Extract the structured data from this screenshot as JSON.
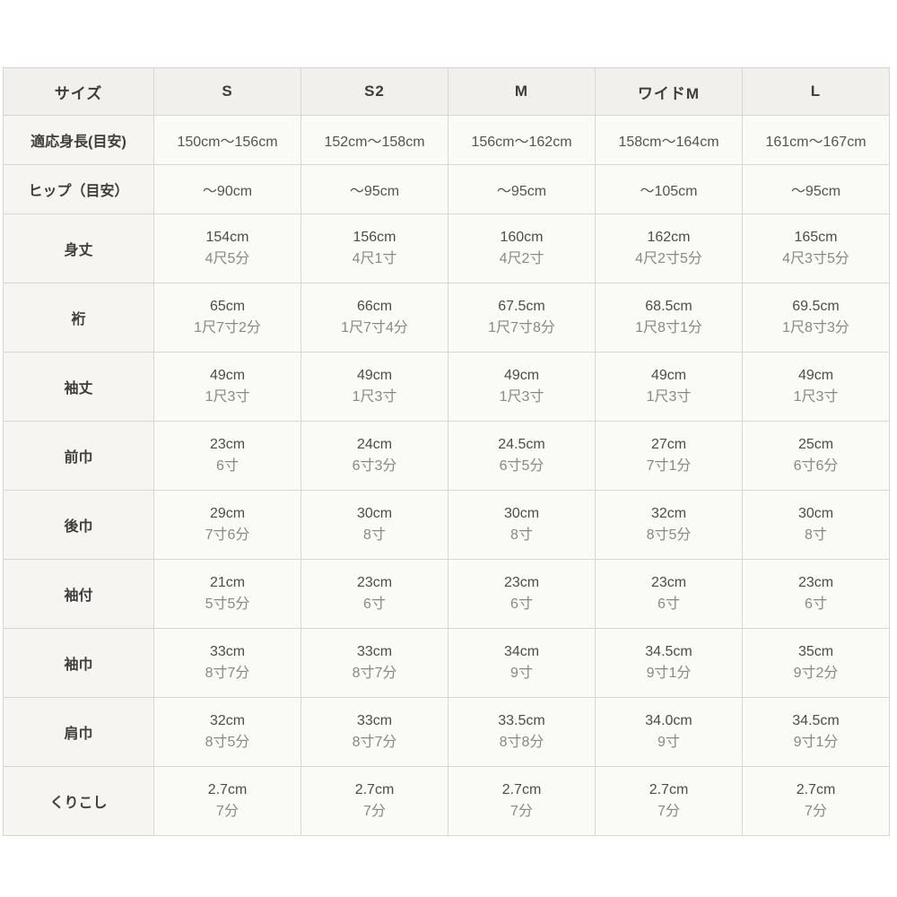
{
  "table": {
    "columns": [
      "サイズ",
      "S",
      "S2",
      "M",
      "ワイドM",
      "L"
    ],
    "rows": [
      {
        "label": "適応身長(目安)",
        "type": "single",
        "values": [
          "150cm〜156cm",
          "152cm〜158cm",
          "156cm〜162cm",
          "158cm〜164cm",
          "161cm〜167cm"
        ]
      },
      {
        "label": "ヒップ（目安）",
        "type": "single",
        "values": [
          "〜90cm",
          "〜95cm",
          "〜95cm",
          "〜105cm",
          "〜95cm"
        ]
      },
      {
        "label": "身丈",
        "type": "double",
        "values": [
          [
            "154cm",
            "4尺5分"
          ],
          [
            "156cm",
            "4尺1寸"
          ],
          [
            "160cm",
            "4尺2寸"
          ],
          [
            "162cm",
            "4尺2寸5分"
          ],
          [
            "165cm",
            "4尺3寸5分"
          ]
        ]
      },
      {
        "label": "裄",
        "type": "double",
        "values": [
          [
            "65cm",
            "1尺7寸2分"
          ],
          [
            "66cm",
            "1尺7寸4分"
          ],
          [
            "67.5cm",
            "1尺7寸8分"
          ],
          [
            "68.5cm",
            "1尺8寸1分"
          ],
          [
            "69.5cm",
            "1尺8寸3分"
          ]
        ]
      },
      {
        "label": "袖丈",
        "type": "double",
        "values": [
          [
            "49cm",
            "1尺3寸"
          ],
          [
            "49cm",
            "1尺3寸"
          ],
          [
            "49cm",
            "1尺3寸"
          ],
          [
            "49cm",
            "1尺3寸"
          ],
          [
            "49cm",
            "1尺3寸"
          ]
        ]
      },
      {
        "label": "前巾",
        "type": "double",
        "values": [
          [
            "23cm",
            "6寸"
          ],
          [
            "24cm",
            "6寸3分"
          ],
          [
            "24.5cm",
            "6寸5分"
          ],
          [
            "27cm",
            "7寸1分"
          ],
          [
            "25cm",
            "6寸6分"
          ]
        ]
      },
      {
        "label": "後巾",
        "type": "double",
        "values": [
          [
            "29cm",
            "7寸6分"
          ],
          [
            "30cm",
            "8寸"
          ],
          [
            "30cm",
            "8寸"
          ],
          [
            "32cm",
            "8寸5分"
          ],
          [
            "30cm",
            "8寸"
          ]
        ]
      },
      {
        "label": "袖付",
        "type": "double",
        "values": [
          [
            "21cm",
            "5寸5分"
          ],
          [
            "23cm",
            "6寸"
          ],
          [
            "23cm",
            "6寸"
          ],
          [
            "23cm",
            "6寸"
          ],
          [
            "23cm",
            "6寸"
          ]
        ]
      },
      {
        "label": "袖巾",
        "type": "double",
        "values": [
          [
            "33cm",
            "8寸7分"
          ],
          [
            "33cm",
            "8寸7分"
          ],
          [
            "34cm",
            "9寸"
          ],
          [
            "34.5cm",
            "9寸1分"
          ],
          [
            "35cm",
            "9寸2分"
          ]
        ]
      },
      {
        "label": "肩巾",
        "type": "double",
        "values": [
          [
            "32cm",
            "8寸5分"
          ],
          [
            "33cm",
            "8寸7分"
          ],
          [
            "33.5cm",
            "8寸8分"
          ],
          [
            "34.0cm",
            "9寸"
          ],
          [
            "34.5cm",
            "9寸1分"
          ]
        ]
      },
      {
        "label": "くりこし",
        "type": "double",
        "values": [
          [
            "2.7cm",
            "7分"
          ],
          [
            "2.7cm",
            "7分"
          ],
          [
            "2.7cm",
            "7分"
          ],
          [
            "2.7cm",
            "7分"
          ],
          [
            "2.7cm",
            "7分"
          ]
        ]
      }
    ]
  }
}
